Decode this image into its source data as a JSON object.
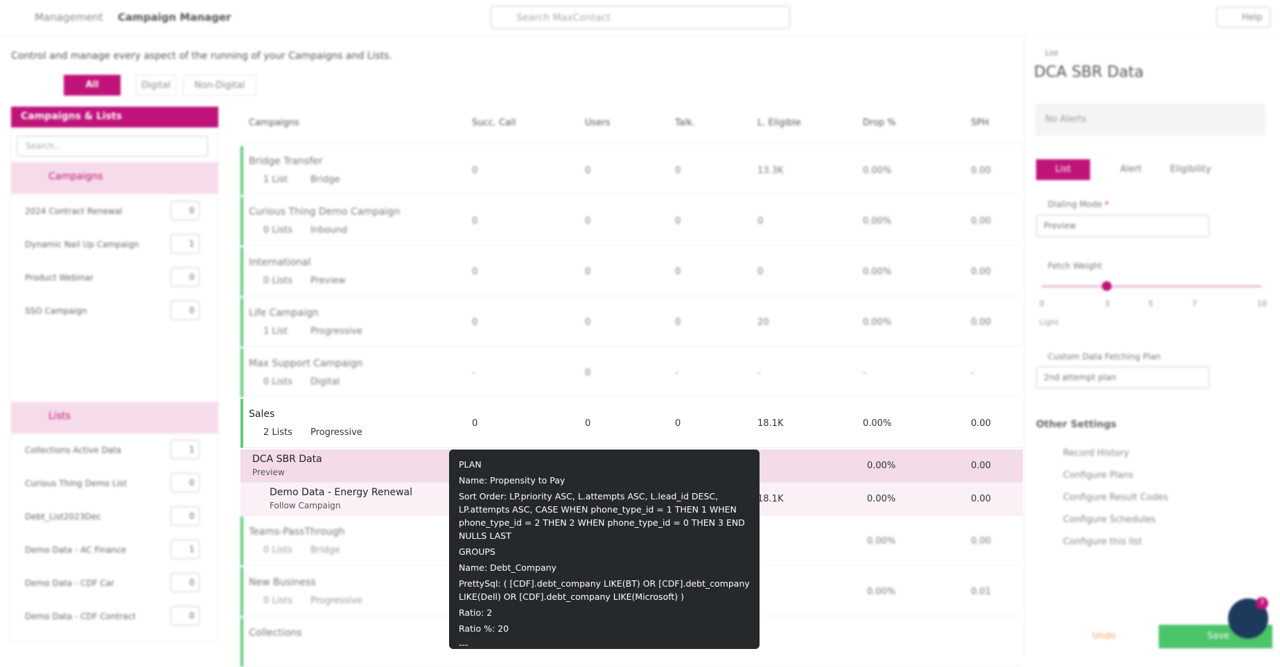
{
  "header": {
    "breadcrumb": [
      "Management",
      "Campaign Manager"
    ],
    "search": "Search MaxContact",
    "help": "Help"
  },
  "description": "Control and manage every aspect of the running of your Campaigns and Lists.",
  "filters": [
    "All",
    "Digital",
    "Non-Digital"
  ],
  "sidebar": {
    "title": "Campaigns & Lists",
    "search": "Search...",
    "campaigns": {
      "title": "Campaigns",
      "items": [
        {
          "name": "2024 Contract Renewal",
          "count": 0
        },
        {
          "name": "Dynamic Nail Up Campaign",
          "count": 1
        },
        {
          "name": "Product Webinar",
          "count": 0
        },
        {
          "name": "SSO Campaign",
          "count": 0
        }
      ]
    },
    "lists": {
      "title": "Lists",
      "items": [
        {
          "name": "Collections Active Data",
          "count": 1
        },
        {
          "name": "Curious Thing Demo List",
          "count": 0
        },
        {
          "name": "Debt_List2023Dec",
          "count": 0
        },
        {
          "name": "Demo Data - AC Finance",
          "count": 1
        },
        {
          "name": "Demo Data - CDF Car",
          "count": 0
        },
        {
          "name": "Demo Data - CDF Contract",
          "count": 0
        }
      ]
    }
  },
  "table": {
    "columns": [
      "Campaigns",
      "Succ. Call",
      "Users",
      "Talk.",
      "L. Eligible",
      "Drop %",
      "SPH"
    ],
    "rows": [
      {
        "name": "Bridge Transfer",
        "lists": "1 List",
        "mode": "Bridge",
        "cells": [
          0,
          0,
          0,
          "13.3K",
          "0.00%",
          "0.00"
        ]
      },
      {
        "name": "Curious Thing Demo Campaign",
        "lists": "0 Lists",
        "mode": "Inbound",
        "cells": [
          0,
          0,
          0,
          0,
          "0.00%",
          "0.00"
        ]
      },
      {
        "name": "International",
        "lists": "0 Lists",
        "mode": "Preview",
        "cells": [
          0,
          0,
          0,
          0,
          "0.00%",
          "0.00"
        ]
      },
      {
        "name": "Life Campaign",
        "lists": "1 List",
        "mode": "Progressive",
        "cells": [
          0,
          0,
          0,
          20,
          "0.00%",
          "0.00"
        ]
      },
      {
        "name": "Max Support Campaign",
        "lists": "0 Lists",
        "mode": "Digital",
        "cells": [
          "-",
          0,
          "-",
          "-",
          "-",
          "-"
        ]
      },
      {
        "name": "Sales",
        "lists": "2 Lists",
        "mode": "Progressive",
        "cells": [
          0,
          0,
          0,
          "18.1K",
          "0.00%",
          "0.00"
        ]
      }
    ],
    "sub_rows": [
      {
        "name": "DCA SBR Data",
        "mode": "Preview",
        "drop": "0.00%",
        "sph": "0.00"
      },
      {
        "name": "Demo Data - Energy Renewal",
        "mode": "Follow Campaign",
        "eligible": "18.1K",
        "drop": "0.00%",
        "sph": "0.00"
      }
    ],
    "rows_after": [
      {
        "name": "Teams-PassThrough",
        "lists": "0 Lists",
        "mode": "Bridge",
        "drop": "0.00%",
        "sph": "0.00"
      },
      {
        "name": "New Business",
        "lists": "0 Lists",
        "mode": "Progressive",
        "drop": "0.00%",
        "sph": "0.01"
      },
      {
        "name": "Collections"
      }
    ]
  },
  "tooltip": [
    "PLAN",
    "Name: Propensity to Pay",
    "Sort Order: LP.priority ASC, L.attempts ASC, L.lead_id DESC, LP.attempts ASC, CASE WHEN phone_type_id = 1 THEN 1 WHEN phone_type_id = 2 THEN 2 WHEN phone_type_id = 0 THEN 3 END NULLS LAST",
    "GROUPS",
    "Name: Debt_Company",
    "PrettySql: ( [CDF].debt_company LIKE(BT) OR [CDF].debt_company LIKE(Dell) OR [CDF].debt_company LIKE(Microsoft) )",
    "Ratio: 2",
    "Ratio %: 20",
    "---"
  ],
  "panel": {
    "label": "List",
    "title": "DCA SBR Data",
    "alerts": "No Alerts",
    "tabs": [
      "List",
      "Alert",
      "Eligibility"
    ],
    "dialing_mode": {
      "label": "Dialing Mode",
      "required": "*",
      "value": "Preview"
    },
    "fetch_weight": {
      "label": "Fetch Weight",
      "ticks": [
        "0",
        "3",
        "5",
        "7",
        "10"
      ],
      "caption": "Light"
    },
    "plan": {
      "label": "Custom Data Fetching Plan",
      "value": "2nd attempt plan"
    },
    "other": {
      "title": "Other Settings",
      "items": [
        "Record History",
        "Configure Plans",
        "Configure Result Codes",
        "Configure Schedules",
        "Configure this list"
      ]
    },
    "undo": "Undo",
    "save": "Save",
    "badge": "3"
  }
}
